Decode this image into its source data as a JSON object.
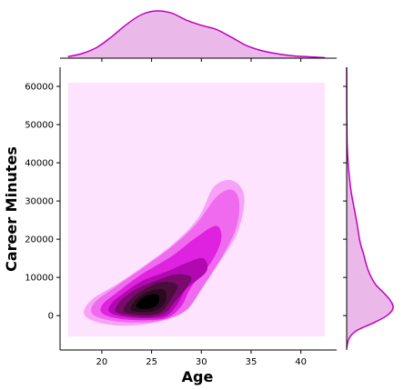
{
  "chart_data": {
    "type": "jointplot-kde",
    "xlabel": "Age",
    "ylabel": "Career Minutes",
    "xlim": [
      15.8,
      43.6
    ],
    "ylim": [
      -9000,
      65000
    ],
    "x_ticks": [
      20,
      25,
      30,
      35,
      40
    ],
    "x_tick_labels": [
      "20",
      "25",
      "30",
      "35",
      "40"
    ],
    "y_ticks": [
      0,
      10000,
      20000,
      30000,
      40000,
      50000,
      60000
    ],
    "y_tick_labels": [
      "0",
      "10000",
      "20000",
      "30000",
      "40000",
      "50000",
      "60000"
    ],
    "grid": false,
    "color": "#c000c0",
    "fill_color": "#eab9ea",
    "background_fill": "#fde3fd",
    "contour_colors": [
      "#fde3fd",
      "#f7a2f7",
      "#f06af0",
      "#df22df",
      "#b108b1",
      "#7a0a6e",
      "#4a0e3b",
      "#2a0a20"
    ],
    "joint_density": {
      "x_range": [
        16.6,
        42.4
      ],
      "y_range": [
        -5500,
        61000
      ],
      "mode": [
        24.5,
        4000
      ],
      "contours": [
        {
          "level": 1,
          "points": [
            [
              18.2,
              500
            ],
            [
              19.5,
              -1700
            ],
            [
              22.0,
              -2600
            ],
            [
              25.0,
              -2000
            ],
            [
              28.0,
              500
            ],
            [
              29.3,
              4000
            ],
            [
              31.3,
              12000
            ],
            [
              33.5,
              21000
            ],
            [
              34.3,
              29000
            ],
            [
              34.0,
              33500
            ],
            [
              32.8,
              35500
            ],
            [
              31.2,
              33500
            ],
            [
              29.8,
              26000
            ],
            [
              27.5,
              19500
            ],
            [
              24.5,
              13500
            ],
            [
              21.5,
              8200
            ],
            [
              19.0,
              4200
            ]
          ]
        },
        {
          "level": 2,
          "points": [
            [
              19.0,
              600
            ],
            [
              20.5,
              -1100
            ],
            [
              23.0,
              -1800
            ],
            [
              26.0,
              -1300
            ],
            [
              28.5,
              1500
            ],
            [
              30.0,
              7000
            ],
            [
              32.0,
              15000
            ],
            [
              33.5,
              23000
            ],
            [
              33.8,
              30000
            ],
            [
              33.0,
              33000
            ],
            [
              31.5,
              31000
            ],
            [
              29.5,
              24000
            ],
            [
              27.0,
              18000
            ],
            [
              24.0,
              12300
            ],
            [
              21.2,
              7200
            ],
            [
              19.3,
              3500
            ]
          ]
        },
        {
          "level": 3,
          "points": [
            [
              20.0,
              700
            ],
            [
              21.5,
              -700
            ],
            [
              24.0,
              -1200
            ],
            [
              26.5,
              -600
            ],
            [
              28.0,
              2500
            ],
            [
              29.0,
              7500
            ],
            [
              31.0,
              14000
            ],
            [
              32.0,
              20000
            ],
            [
              31.5,
              23500
            ],
            [
              29.5,
              20500
            ],
            [
              27.0,
              15500
            ],
            [
              24.0,
              10800
            ],
            [
              21.5,
              6000
            ],
            [
              20.1,
              3000
            ]
          ]
        },
        {
          "level": 4,
          "points": [
            [
              20.8,
              800
            ],
            [
              22.5,
              -400
            ],
            [
              24.8,
              -700
            ],
            [
              26.5,
              0
            ],
            [
              27.6,
              3000
            ],
            [
              28.5,
              7000
            ],
            [
              30.5,
              11500
            ],
            [
              30.2,
              15000
            ],
            [
              28.5,
              13800
            ],
            [
              26.5,
              11500
            ],
            [
              24.0,
              9000
            ],
            [
              22.0,
              5500
            ],
            [
              20.9,
              3000
            ]
          ]
        },
        {
          "level": 5,
          "points": [
            [
              21.4,
              1000
            ],
            [
              23.0,
              -100
            ],
            [
              25.0,
              -300
            ],
            [
              26.4,
              800
            ],
            [
              27.3,
              3500
            ],
            [
              28.4,
              7000
            ],
            [
              29.0,
              10000
            ],
            [
              27.5,
              10800
            ],
            [
              25.5,
              9200
            ],
            [
              23.3,
              6700
            ],
            [
              21.8,
              3600
            ]
          ]
        },
        {
          "level": 6,
          "points": [
            [
              22.2,
              1200
            ],
            [
              23.5,
              300
            ],
            [
              25.2,
              300
            ],
            [
              26.2,
              1500
            ],
            [
              27.0,
              4500
            ],
            [
              27.6,
              8000
            ],
            [
              26.0,
              8800
            ],
            [
              24.2,
              6800
            ],
            [
              22.8,
              4000
            ]
          ]
        },
        {
          "level": 7,
          "points": [
            [
              22.9,
              1600
            ],
            [
              24.2,
              900
            ],
            [
              25.5,
              1400
            ],
            [
              26.4,
              3700
            ],
            [
              26.3,
              6700
            ],
            [
              25.0,
              6600
            ],
            [
              23.6,
              4600
            ]
          ]
        },
        {
          "level": 8,
          "points": [
            [
              23.5,
              2200
            ],
            [
              24.6,
              1700
            ],
            [
              25.6,
              3000
            ],
            [
              25.7,
              5300
            ],
            [
              24.7,
              5400
            ],
            [
              23.8,
              3900
            ]
          ]
        }
      ]
    },
    "x_marginal_density": {
      "x": [
        16.6,
        18,
        19.5,
        21,
        22.5,
        24,
        25.5,
        27,
        28.5,
        30,
        31.5,
        33,
        34.5,
        36,
        37.5,
        39,
        40.5,
        42.4
      ],
      "y": [
        0.003,
        0.009,
        0.021,
        0.042,
        0.066,
        0.085,
        0.092,
        0.088,
        0.074,
        0.064,
        0.056,
        0.041,
        0.025,
        0.015,
        0.009,
        0.005,
        0.003,
        0.001
      ]
    },
    "y_marginal_density": {
      "y": [
        -8500,
        -6000,
        -4000,
        -2000,
        0,
        2000,
        4000,
        6000,
        8000,
        10000,
        12000,
        14000,
        16000,
        18000,
        20000,
        24000,
        28000,
        32000,
        36000,
        40000,
        45000,
        50000,
        55000,
        60000,
        65000
      ],
      "x": [
        0.0,
        0.05,
        0.2,
        0.55,
        0.85,
        0.98,
        0.92,
        0.78,
        0.62,
        0.52,
        0.45,
        0.4,
        0.36,
        0.31,
        0.27,
        0.22,
        0.16,
        0.1,
        0.06,
        0.03,
        0.01,
        0.005,
        0.002,
        0.001,
        0.0
      ]
    }
  }
}
